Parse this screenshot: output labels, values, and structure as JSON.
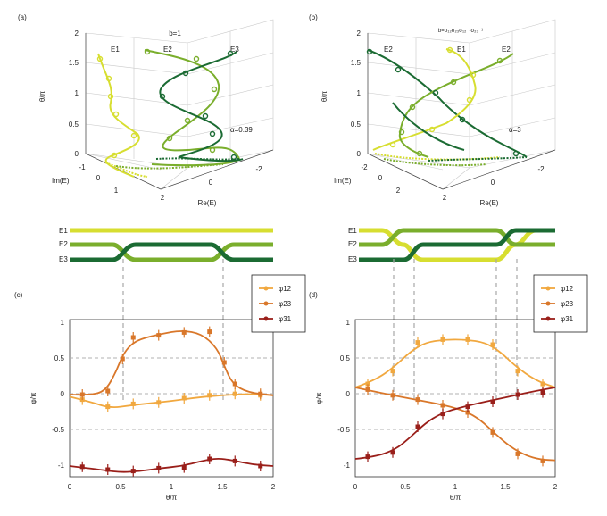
{
  "colors": {
    "E1": "#d7de30",
    "E2": "#7aae2c",
    "E3": "#1b6b33",
    "phi12": "#f1a83f",
    "phi23": "#d9772a",
    "phi31": "#9a1f1a",
    "grid": "#b0b0b0"
  },
  "panel_a": {
    "label": "(a)",
    "title": "b=1",
    "alpha_label": "α=0.39",
    "theta_label": "θ/π",
    "re_label": "Re(E)",
    "im_label": "Im(E)",
    "series_labels": [
      "E1",
      "E2",
      "E3"
    ],
    "theta_ticks": [
      "0",
      "0.5",
      "1",
      "1.5",
      "2"
    ],
    "re_ticks": [
      "2",
      "0",
      "-2"
    ],
    "im_ticks": [
      "-1",
      "0",
      "1"
    ]
  },
  "panel_b": {
    "label": "(b)",
    "title": "b=σ₁₂σ₂₃σ₁₂⁻¹σ₂₃⁻¹",
    "alpha_label": "α=3",
    "theta_label": "θ/π",
    "re_label": "Re(E)",
    "im_label": "Im(E)",
    "series_labels": [
      "E2",
      "E1",
      "E2"
    ],
    "theta_ticks": [
      "0",
      "0.5",
      "1",
      "1.5",
      "2"
    ],
    "re_ticks": [
      "2",
      "0",
      "-2"
    ],
    "im_ticks": [
      "-2",
      "0",
      "2"
    ]
  },
  "braid_c": {
    "strand_labels": [
      "E1",
      "E2",
      "E3"
    ]
  },
  "braid_d": {
    "strand_labels": [
      "E1",
      "E2",
      "E3"
    ]
  },
  "chart_data": [
    {
      "panel": "(c)",
      "type": "line",
      "xlabel": "θ/π",
      "ylabel": "φ/π",
      "xlim": [
        0,
        2
      ],
      "ylim": [
        -1.1,
        1.1
      ],
      "xticks": [
        "0",
        "0.5",
        "1",
        "1.5",
        "2"
      ],
      "yticks": [
        "1",
        "0.5",
        "0",
        "-0.5",
        "-1"
      ],
      "legend": "top-right",
      "series": [
        {
          "name": "φ12",
          "color": "#f1a83f",
          "x": [
            0.125,
            0.375,
            0.625,
            0.875,
            1.125,
            1.375,
            1.625,
            1.875
          ],
          "y": [
            -0.02,
            -0.12,
            -0.08,
            -0.06,
            0.0,
            0.04,
            0.06,
            0.04
          ],
          "curve_x": [
            0,
            0.2,
            0.4,
            0.6,
            0.8,
            1.0,
            1.2,
            1.4,
            1.6,
            1.8,
            2.0
          ],
          "curve_y": [
            0.02,
            -0.05,
            -0.14,
            -0.1,
            -0.07,
            -0.04,
            0.0,
            0.03,
            0.05,
            0.06,
            0.04
          ]
        },
        {
          "name": "φ23",
          "color": "#d9772a",
          "x": [
            0.125,
            0.375,
            0.52,
            0.625,
            0.875,
            1.125,
            1.375,
            1.52,
            1.625,
            1.875
          ],
          "y": [
            0.05,
            0.1,
            0.55,
            0.85,
            0.88,
            0.92,
            0.93,
            0.5,
            0.2,
            0.06
          ],
          "curve_x": [
            0,
            0.2,
            0.35,
            0.45,
            0.52,
            0.6,
            0.7,
            0.9,
            1.1,
            1.3,
            1.45,
            1.52,
            1.6,
            1.75,
            2.0
          ],
          "curve_y": [
            0.05,
            0.04,
            0.1,
            0.35,
            0.6,
            0.75,
            0.83,
            0.9,
            0.95,
            0.9,
            0.7,
            0.45,
            0.2,
            0.08,
            0.04
          ]
        },
        {
          "name": "φ31",
          "color": "#9a1f1a",
          "x": [
            0.125,
            0.375,
            0.625,
            0.875,
            1.125,
            1.375,
            1.625,
            1.875
          ],
          "y": [
            -0.96,
            -1.0,
            -1.02,
            -0.98,
            -0.97,
            -0.85,
            -0.88,
            -0.95
          ],
          "curve_x": [
            0,
            0.3,
            0.5,
            0.7,
            0.9,
            1.1,
            1.3,
            1.45,
            1.6,
            1.8,
            2.0
          ],
          "curve_y": [
            -0.95,
            -1.0,
            -1.04,
            -1.02,
            -0.98,
            -0.95,
            -0.88,
            -0.84,
            -0.87,
            -0.93,
            -0.95
          ]
        }
      ]
    },
    {
      "panel": "(d)",
      "type": "line",
      "xlabel": "θ/π",
      "ylabel": "φ/π",
      "xlim": [
        0,
        2
      ],
      "ylim": [
        -1.1,
        1.1
      ],
      "xticks": [
        "0",
        "0.5",
        "1",
        "1.5",
        "2"
      ],
      "yticks": [
        "1",
        "0.5",
        "0",
        "-0.5",
        "-1"
      ],
      "legend": "top-right",
      "series": [
        {
          "name": "φ12",
          "color": "#f1a83f",
          "x": [
            0.125,
            0.375,
            0.625,
            0.875,
            1.125,
            1.375,
            1.625,
            1.875
          ],
          "y": [
            0.2,
            0.38,
            0.78,
            0.82,
            0.82,
            0.75,
            0.38,
            0.2
          ],
          "curve_x": [
            0,
            0.2,
            0.4,
            0.55,
            0.7,
            0.9,
            1.1,
            1.3,
            1.45,
            1.6,
            1.8,
            2.0
          ],
          "curve_y": [
            0.15,
            0.25,
            0.45,
            0.65,
            0.78,
            0.82,
            0.82,
            0.78,
            0.65,
            0.45,
            0.25,
            0.15
          ]
        },
        {
          "name": "φ23",
          "color": "#d9772a",
          "x": [
            0.125,
            0.375,
            0.625,
            0.875,
            1.125,
            1.375,
            1.625,
            1.875
          ],
          "y": [
            0.12,
            0.04,
            -0.02,
            -0.1,
            -0.2,
            -0.48,
            -0.78,
            -0.88
          ],
          "curve_x": [
            0,
            0.3,
            0.6,
            0.9,
            1.1,
            1.25,
            1.4,
            1.55,
            1.7,
            1.85,
            2.0
          ],
          "curve_y": [
            0.15,
            0.06,
            -0.02,
            -0.1,
            -0.18,
            -0.3,
            -0.5,
            -0.68,
            -0.8,
            -0.86,
            -0.87
          ]
        },
        {
          "name": "φ31",
          "color": "#9a1f1a",
          "x": [
            0.125,
            0.375,
            0.625,
            0.875,
            1.125,
            1.375,
            1.625,
            1.875
          ],
          "y": [
            -0.82,
            -0.76,
            -0.4,
            -0.22,
            -0.12,
            -0.05,
            0.05,
            0.08
          ],
          "curve_x": [
            0,
            0.2,
            0.4,
            0.55,
            0.7,
            0.85,
            1.0,
            1.2,
            1.4,
            1.6,
            1.8,
            2.0
          ],
          "curve_y": [
            -0.85,
            -0.82,
            -0.72,
            -0.55,
            -0.35,
            -0.22,
            -0.15,
            -0.08,
            -0.02,
            0.04,
            0.1,
            0.15
          ]
        }
      ]
    }
  ]
}
